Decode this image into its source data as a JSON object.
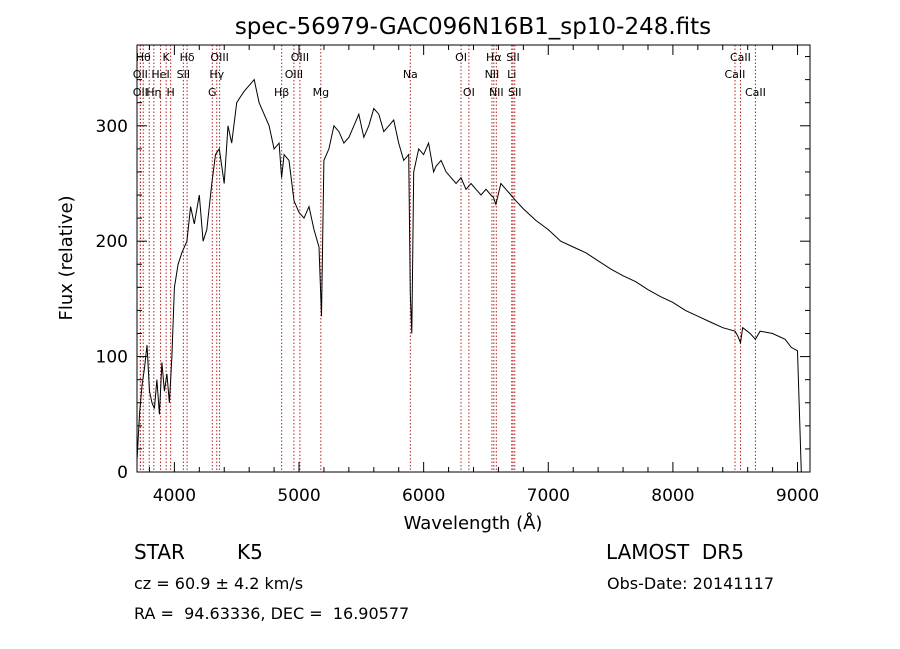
{
  "chart_data": {
    "type": "line",
    "title": "spec-56979-GAC096N16B1_sp10-248.fits",
    "xlabel": "Wavelength (Å)",
    "ylabel": "Flux (relative)",
    "xlim": [
      3700,
      9100
    ],
    "ylim": [
      0,
      370
    ],
    "xticks": [
      4000,
      5000,
      6000,
      7000,
      8000,
      9000
    ],
    "yticks": [
      0,
      100,
      200,
      300
    ],
    "grid": false,
    "line_color": "#000000",
    "marker_color": "#b22222",
    "series": [
      {
        "x": [
          3700,
          3720,
          3740,
          3760,
          3780,
          3800,
          3820,
          3840,
          3860,
          3880,
          3900,
          3920,
          3940,
          3960,
          3980,
          4000,
          4030,
          4060,
          4100,
          4130,
          4160,
          4200,
          4230,
          4260,
          4300,
          4330,
          4360,
          4400,
          4430,
          4460,
          4500,
          4530,
          4560,
          4600,
          4640,
          4680,
          4720,
          4760,
          4800,
          4840,
          4860,
          4880,
          4920,
          4960,
          5000,
          5040,
          5080,
          5120,
          5160,
          5180,
          5200,
          5240,
          5280,
          5320,
          5360,
          5400,
          5440,
          5480,
          5520,
          5560,
          5600,
          5640,
          5680,
          5720,
          5760,
          5800,
          5840,
          5880,
          5893,
          5905,
          5920,
          5960,
          6000,
          6040,
          6080,
          6100,
          6140,
          6180,
          6220,
          6260,
          6300,
          6340,
          6380,
          6420,
          6460,
          6500,
          6540,
          6560,
          6580,
          6620,
          6660,
          6700,
          6740,
          6800,
          6900,
          7000,
          7100,
          7200,
          7300,
          7400,
          7500,
          7600,
          7700,
          7800,
          7900,
          8000,
          8100,
          8200,
          8300,
          8400,
          8498,
          8520,
          8542,
          8560,
          8620,
          8662,
          8700,
          8800,
          8900,
          8950,
          9000,
          9030,
          9040
        ],
        "y": [
          10,
          50,
          75,
          90,
          110,
          70,
          60,
          55,
          80,
          50,
          95,
          70,
          85,
          60,
          100,
          160,
          180,
          190,
          200,
          230,
          215,
          240,
          200,
          210,
          250,
          275,
          280,
          250,
          300,
          285,
          320,
          325,
          330,
          335,
          340,
          320,
          310,
          300,
          280,
          285,
          255,
          275,
          270,
          235,
          225,
          220,
          230,
          210,
          195,
          135,
          270,
          280,
          300,
          295,
          285,
          290,
          300,
          310,
          290,
          300,
          315,
          310,
          295,
          300,
          305,
          285,
          270,
          275,
          155,
          120,
          260,
          280,
          275,
          285,
          260,
          265,
          270,
          260,
          255,
          250,
          255,
          245,
          250,
          245,
          240,
          245,
          240,
          238,
          232,
          250,
          245,
          240,
          235,
          228,
          218,
          210,
          200,
          195,
          190,
          183,
          176,
          170,
          165,
          158,
          152,
          147,
          140,
          135,
          130,
          125,
          122,
          118,
          112,
          125,
          120,
          115,
          122,
          120,
          115,
          108,
          105,
          0,
          0
        ]
      }
    ],
    "line_markers": [
      {
        "x": 3750,
        "label": "Hθ",
        "row": 0
      },
      {
        "x": 3727,
        "label": "OII",
        "row": 1
      },
      {
        "x": 3727,
        "label": "OII",
        "row": 2
      },
      {
        "x": 3798,
        "label": "",
        "row": 0
      },
      {
        "x": 3835,
        "label": "Hη",
        "row": 2
      },
      {
        "x": 3889,
        "label": "HeI",
        "row": 1
      },
      {
        "x": 3934,
        "label": "K",
        "row": 0
      },
      {
        "x": 3970,
        "label": "H",
        "row": 2
      },
      {
        "x": 4072,
        "label": "SII",
        "row": 1
      },
      {
        "x": 4102,
        "label": "Hδ",
        "row": 0
      },
      {
        "x": 4304,
        "label": "G",
        "row": 2
      },
      {
        "x": 4340,
        "label": "Hγ",
        "row": 1
      },
      {
        "x": 4363,
        "label": "OIII",
        "row": 0
      },
      {
        "x": 4861,
        "label": "Hβ",
        "row": 2
      },
      {
        "x": 4959,
        "label": "OIII",
        "row": 1
      },
      {
        "x": 5007,
        "label": "OIII",
        "row": 0
      },
      {
        "x": 5175,
        "label": "Mg",
        "row": 2
      },
      {
        "x": 5893,
        "label": "Na",
        "row": 1
      },
      {
        "x": 6300,
        "label": "OI",
        "row": 0
      },
      {
        "x": 6363,
        "label": "OI",
        "row": 2
      },
      {
        "x": 6548,
        "label": "NII",
        "row": 1
      },
      {
        "x": 6563,
        "label": "Hα",
        "row": 0
      },
      {
        "x": 6583,
        "label": "NII",
        "row": 2
      },
      {
        "x": 6707,
        "label": "Li",
        "row": 1
      },
      {
        "x": 6717,
        "label": "SII",
        "row": 0
      },
      {
        "x": 6731,
        "label": "SII",
        "row": 2
      },
      {
        "x": 8498,
        "label": "CaII",
        "row": 1
      },
      {
        "x": 8542,
        "label": "CaII",
        "row": 0
      },
      {
        "x": 8662,
        "label": "CaII",
        "row": 2
      }
    ]
  },
  "info": {
    "object_class": "STAR",
    "subclass": "K5",
    "survey": "LAMOST  DR5",
    "redshift": "cz = 60.9 ± 4.2 km/s",
    "obs_date": "Obs-Date: 20141117",
    "coords": "RA =  94.63336, DEC =  16.90577"
  }
}
